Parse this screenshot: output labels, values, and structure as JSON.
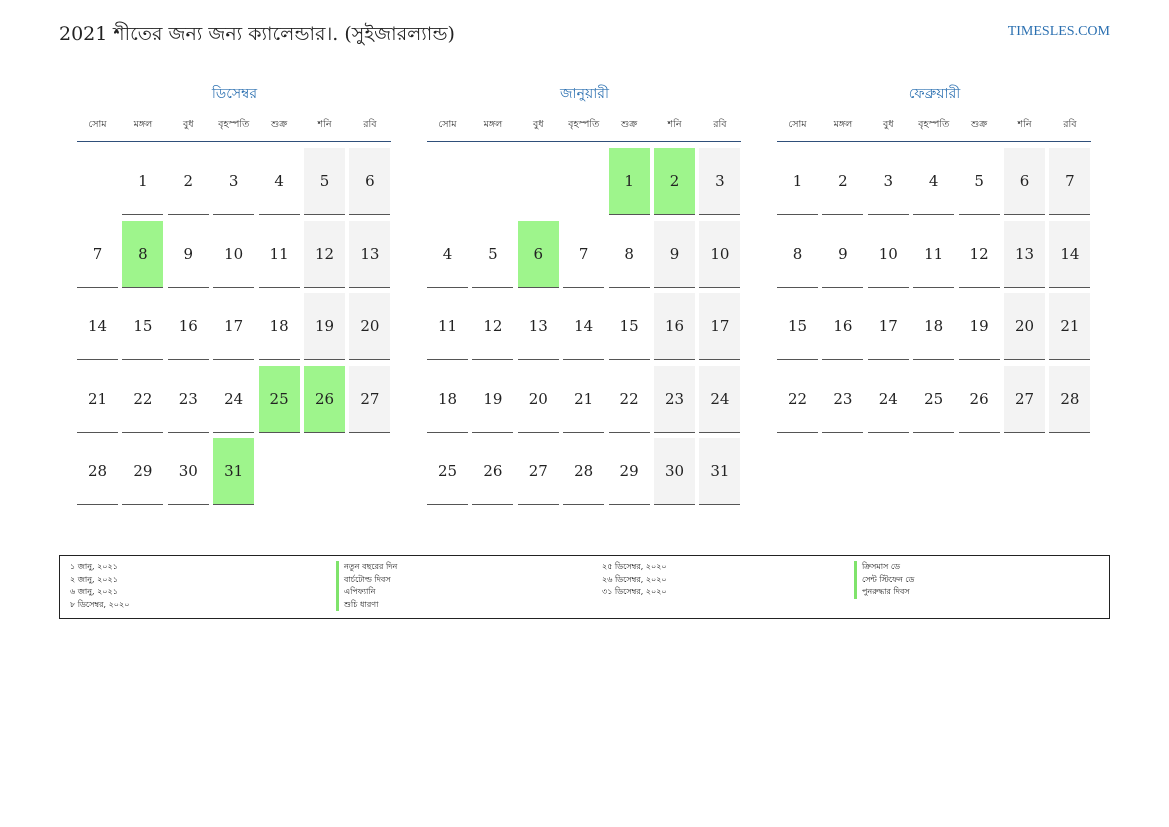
{
  "header": {
    "title": "2021 শীতের জন্য জন্য ক্যালেন্ডার।. (সুইজারল্যান্ড)",
    "site": "TIMESLES.COM"
  },
  "weekdays": [
    "সোম",
    "মঙ্গল",
    "বুধ",
    "বৃহস্পতি",
    "শুক্র",
    "শনি",
    "রবি"
  ],
  "colors": {
    "accent": "#2a6fb0",
    "holiday": "#9ef58c",
    "weekend": "#f3f3f3",
    "rule": "#2f4f7a"
  },
  "months": [
    {
      "name": "ডিসেম্বর",
      "start_weekday": 1,
      "days_in_month": 31,
      "holidays": [
        8,
        25,
        26,
        31
      ]
    },
    {
      "name": "জানুয়ারী",
      "start_weekday": 4,
      "days_in_month": 31,
      "holidays": [
        1,
        2,
        6
      ]
    },
    {
      "name": "ফেব্রুয়ারী",
      "start_weekday": 0,
      "days_in_month": 28,
      "holidays": []
    }
  ],
  "legend": {
    "left_dates": [
      "১ জানু, ২০২১",
      "২ জানু, ২০২১",
      "৬ জানু, ২০২১",
      "৮ ডিসেম্বর, ২০২০"
    ],
    "left_names": [
      "নতুন বছরের দিন",
      "বার্চটোল্ড দিবস",
      "এপিফ্যানি",
      "শুচি ধারণা"
    ],
    "right_dates": [
      "২৫ ডিসেম্বর, ২০২০",
      "২৬ ডিসেম্বর, ২০২০",
      "৩১ ডিসেম্বর, ২০২০"
    ],
    "right_names": [
      "ক্রিসমাস ডে",
      "সেন্ট স্টিফেন ডে",
      "পুনরুদ্ধার দিবস"
    ]
  }
}
